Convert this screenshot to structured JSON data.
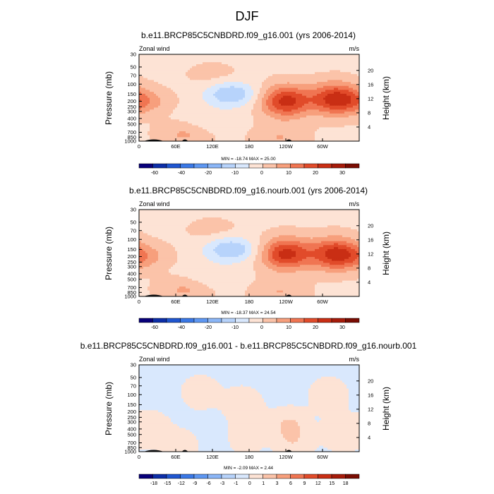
{
  "figure": {
    "title": "DJF"
  },
  "chart_data": [
    {
      "type": "heatmap",
      "title": "b.e11.BRCP85C5CNBDRD.f09_g16.001 (yrs 2006-2014)",
      "left_label": "Zonal wind",
      "units": "m/s",
      "ylabel": "Pressure (mb)",
      "ylabel_right": "Height (km)",
      "x_ticks": [
        "0",
        "60E",
        "120E",
        "180",
        "120W",
        "60W"
      ],
      "x_tick_lon": [
        0,
        60,
        120,
        180,
        240,
        300
      ],
      "xlim": [
        0,
        360
      ],
      "y_ticks": [
        "30",
        "50",
        "70",
        "100",
        "150",
        "200",
        "250",
        "300",
        "400",
        "500",
        "700",
        "850",
        "1000"
      ],
      "y_tick_p": [
        30,
        50,
        70,
        100,
        150,
        200,
        250,
        300,
        400,
        500,
        700,
        850,
        1000
      ],
      "ylim": [
        30,
        1000
      ],
      "y_scale": "log",
      "height_ticks": [
        "20",
        "16",
        "12",
        "8",
        "4"
      ],
      "height_km": [
        20,
        16,
        12,
        8,
        4
      ],
      "stats": "MIN = -18.74  MAX =  25.00",
      "min": -18.74,
      "max": 25.0,
      "colorbar_levels": [
        -60,
        -40,
        -20,
        -10,
        0,
        10,
        20,
        30
      ],
      "colorbar_colors": [
        "#08007a",
        "#0c2ea8",
        "#1f56d0",
        "#3a78e6",
        "#5e97f2",
        "#8bb6f7",
        "#b7d3fb",
        "#d9e8fd",
        "#fde3d5",
        "#fbc3a9",
        "#f79f7c",
        "#f07552",
        "#e14b2a",
        "#c92e14",
        "#a61b0a",
        "#7a0c02"
      ],
      "features": [
        {
          "lon": 150,
          "p": 150,
          "u": -14
        },
        {
          "lon": 240,
          "p": 200,
          "u": 23
        },
        {
          "lon": 320,
          "p": 180,
          "u": 22
        },
        {
          "lon": 5,
          "p": 200,
          "u": 9
        },
        {
          "lon": 75,
          "p": 750,
          "u": 7
        },
        {
          "lon": 230,
          "p": 850,
          "u": 6
        },
        {
          "lon": 120,
          "p": 70,
          "u": 3
        },
        {
          "lon": 115,
          "p": 450,
          "u": -4
        }
      ]
    },
    {
      "type": "heatmap",
      "title": "b.e11.BRCP85C5CNBDRD.f09_g16.nourb.001 (yrs 2006-2014)",
      "left_label": "Zonal wind",
      "units": "m/s",
      "ylabel": "Pressure (mb)",
      "ylabel_right": "Height (km)",
      "x_ticks": [
        "0",
        "60E",
        "120E",
        "180",
        "120W",
        "60W"
      ],
      "x_tick_lon": [
        0,
        60,
        120,
        180,
        240,
        300
      ],
      "xlim": [
        0,
        360
      ],
      "y_ticks": [
        "30",
        "50",
        "70",
        "100",
        "150",
        "200",
        "250",
        "300",
        "400",
        "500",
        "700",
        "850",
        "1000"
      ],
      "y_tick_p": [
        30,
        50,
        70,
        100,
        150,
        200,
        250,
        300,
        400,
        500,
        700,
        850,
        1000
      ],
      "ylim": [
        30,
        1000
      ],
      "y_scale": "log",
      "height_ticks": [
        "20",
        "16",
        "12",
        "8",
        "4"
      ],
      "height_km": [
        20,
        16,
        12,
        8,
        4
      ],
      "stats": "MIN = -18.37  MAX =  24.54",
      "min": -18.37,
      "max": 24.54,
      "colorbar_levels": [
        -60,
        -40,
        -20,
        -10,
        0,
        10,
        20,
        30
      ],
      "colorbar_colors": [
        "#08007a",
        "#0c2ea8",
        "#1f56d0",
        "#3a78e6",
        "#5e97f2",
        "#8bb6f7",
        "#b7d3fb",
        "#d9e8fd",
        "#fde3d5",
        "#fbc3a9",
        "#f79f7c",
        "#f07552",
        "#e14b2a",
        "#c92e14",
        "#a61b0a",
        "#7a0c02"
      ],
      "features": [
        {
          "lon": 150,
          "p": 150,
          "u": -14
        },
        {
          "lon": 240,
          "p": 180,
          "u": 23
        },
        {
          "lon": 320,
          "p": 180,
          "u": 22
        },
        {
          "lon": 5,
          "p": 200,
          "u": 8
        },
        {
          "lon": 75,
          "p": 750,
          "u": 7
        },
        {
          "lon": 230,
          "p": 850,
          "u": 6
        },
        {
          "lon": 120,
          "p": 70,
          "u": 3
        },
        {
          "lon": 115,
          "p": 450,
          "u": -4
        }
      ]
    },
    {
      "type": "heatmap",
      "title": "b.e11.BRCP85C5CNBDRD.f09_g16.001 - b.e11.BRCP85C5CNBDRD.f09_g16.nourb.001",
      "left_label": "Zonal wind",
      "units": "m/s",
      "ylabel": "Pressure (mb)",
      "ylabel_right": "Height (km)",
      "x_ticks": [
        "0",
        "60E",
        "120E",
        "180",
        "120W",
        "60W"
      ],
      "x_tick_lon": [
        0,
        60,
        120,
        180,
        240,
        300
      ],
      "xlim": [
        0,
        360
      ],
      "y_ticks": [
        "30",
        "50",
        "70",
        "100",
        "150",
        "200",
        "250",
        "300",
        "400",
        "500",
        "700",
        "850",
        "1000"
      ],
      "y_tick_p": [
        30,
        50,
        70,
        100,
        150,
        200,
        250,
        300,
        400,
        500,
        700,
        850,
        1000
      ],
      "ylim": [
        30,
        1000
      ],
      "y_scale": "log",
      "height_ticks": [
        "20",
        "16",
        "12",
        "8",
        "4"
      ],
      "height_km": [
        20,
        16,
        12,
        8,
        4
      ],
      "stats": "MIN =  -2.09  MAX =  2.44",
      "min": -2.09,
      "max": 2.44,
      "colorbar_levels": [
        -18,
        -15,
        -12,
        -9,
        -6,
        -3,
        -1,
        0,
        1,
        3,
        6,
        9,
        12,
        15,
        18
      ],
      "colorbar_colors": [
        "#08007a",
        "#0c2ea8",
        "#1f56d0",
        "#3a78e6",
        "#5e97f2",
        "#8bb6f7",
        "#b7d3fb",
        "#d9e8fd",
        "#fde3d5",
        "#fbc3a9",
        "#f79f7c",
        "#f07552",
        "#e14b2a",
        "#c92e14",
        "#a61b0a",
        "#7a0c02"
      ],
      "features": [
        {
          "lon": 20,
          "p": 400,
          "u": 1.2
        },
        {
          "lon": 100,
          "p": 90,
          "u": 1.1
        },
        {
          "lon": 170,
          "p": 150,
          "u": 1.3
        },
        {
          "lon": 245,
          "p": 350,
          "u": 1.5
        },
        {
          "lon": 310,
          "p": 100,
          "u": 1.2
        },
        {
          "lon": 330,
          "p": 500,
          "u": 1.1
        },
        {
          "lon": 175,
          "p": 600,
          "u": 0.9
        },
        {
          "lon": 255,
          "p": 800,
          "u": 0.9
        },
        {
          "lon": 70,
          "p": 800,
          "u": 0.9
        }
      ]
    }
  ]
}
